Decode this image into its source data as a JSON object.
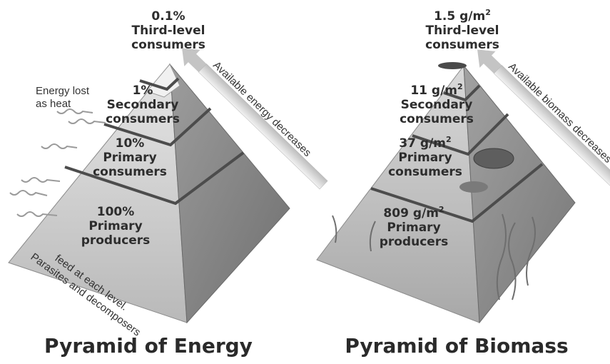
{
  "energy_pyramid": {
    "title": "Pyramid of Energy",
    "levels": [
      {
        "value": "0.1%",
        "name_line1": "Third-level",
        "name_line2": "consumers"
      },
      {
        "value": "1%",
        "name_line1": "Secondary",
        "name_line2": "consumers"
      },
      {
        "value": "10%",
        "name_line1": "Primary",
        "name_line2": "consumers"
      },
      {
        "value": "100%",
        "name_line1": "Primary",
        "name_line2": "producers"
      }
    ],
    "heat_note_line1": "Energy lost",
    "heat_note_line2": "as heat",
    "arrow_label": "Available energy decreases",
    "base_note_line1": "Parasites and decomposers",
    "base_note_line2": "feed at each level."
  },
  "biomass_pyramid": {
    "title": "Pyramid of Biomass",
    "levels": [
      {
        "value": "1.5 g/m",
        "sup": "2",
        "name_line1": "Third-level",
        "name_line2": "consumers"
      },
      {
        "value": "11 g/m",
        "sup": "2",
        "name_line1": "Secondary",
        "name_line2": "consumers"
      },
      {
        "value": "37 g/m",
        "sup": "2",
        "name_line1": "Primary",
        "name_line2": "consumers"
      },
      {
        "value": "809 g/m",
        "sup": "2",
        "name_line1": "Primary",
        "name_line2": "producers"
      }
    ],
    "arrow_label": "Available biomass decreases"
  }
}
